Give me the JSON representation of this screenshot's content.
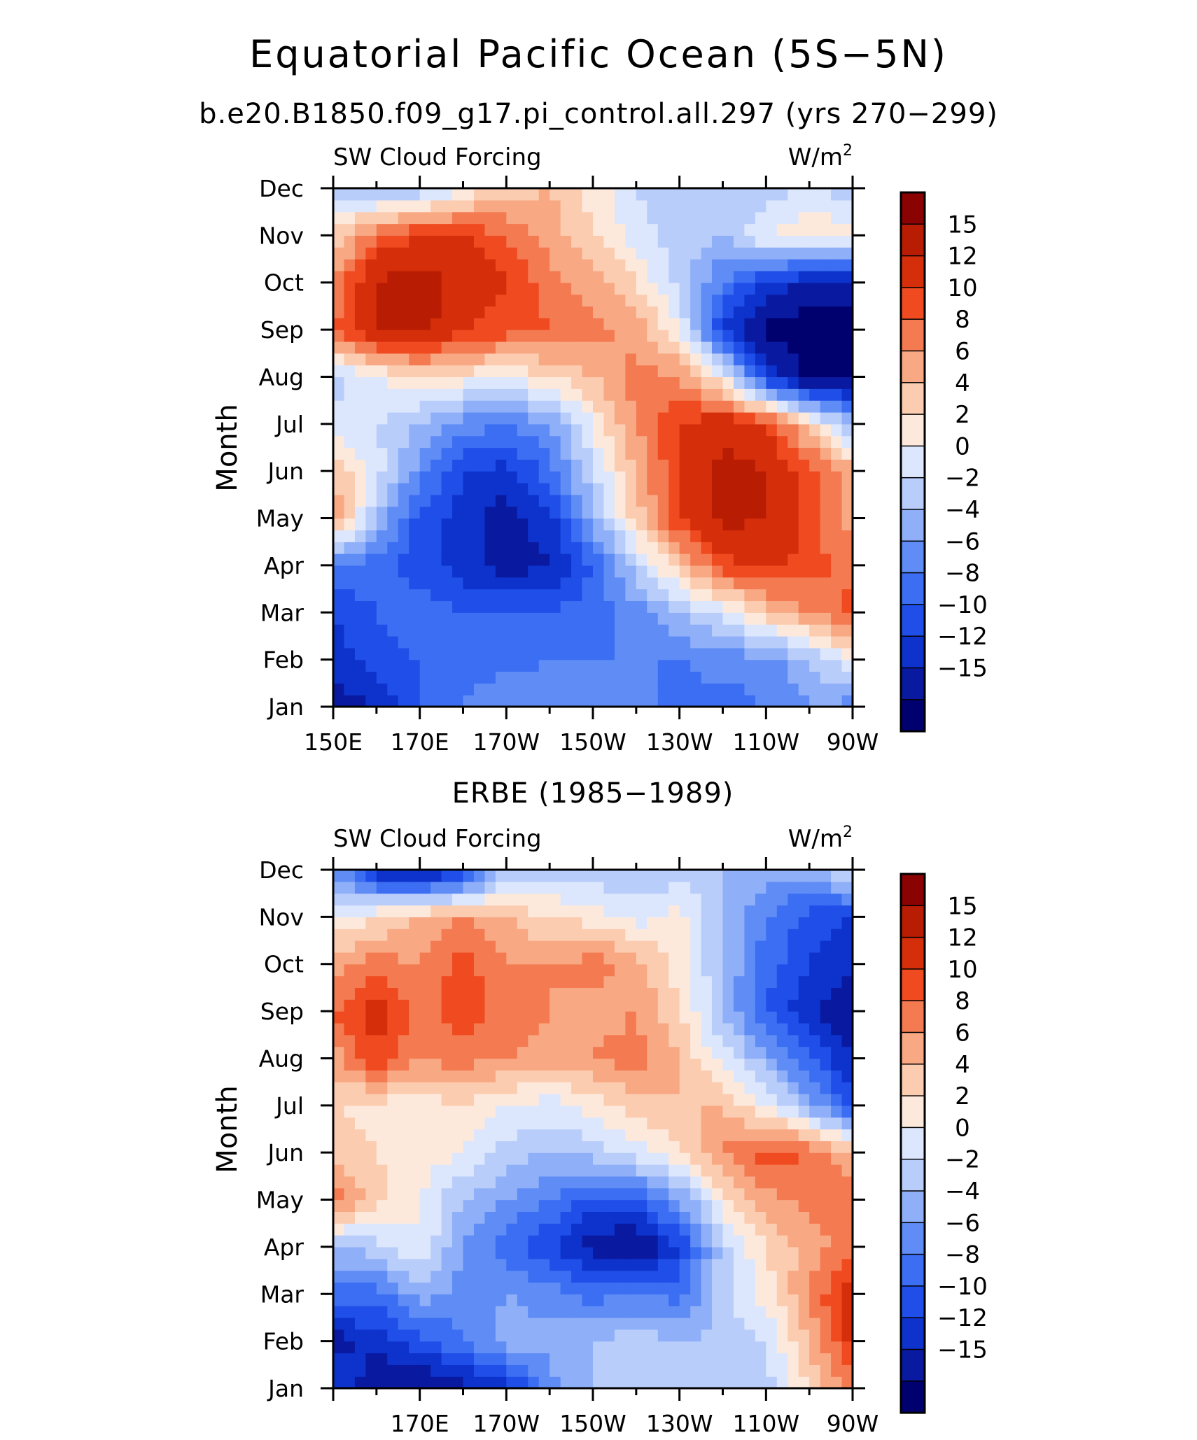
{
  "title": "Equatorial Pacific Ocean (5S−5N)",
  "subtitle": "b.e20.B1850.f09_g17.pi_control.all.297 (yrs 270−299)",
  "panel2_title": "ERBE (1985−1989)",
  "colors": {
    "levels": [
      "#00006f",
      "#0a1aa0",
      "#0d33cc",
      "#1f4fe8",
      "#3b6ef2",
      "#5f8cf5",
      "#8fb0f8",
      "#b9cdfb",
      "#dce7fd",
      "#fde9dc",
      "#fbccb0",
      "#f8a883",
      "#f47a51",
      "#f04a20",
      "#d52e0a",
      "#b81d04",
      "#8a0202"
    ],
    "text": "#000000"
  },
  "colorbar": {
    "labels": [
      "15",
      "12",
      "10",
      "8",
      "6",
      "4",
      "2",
      "0",
      "−2",
      "−4",
      "−6",
      "−8",
      "−10",
      "−12",
      "−15"
    ]
  },
  "chart_data": [
    {
      "type": "heatmap",
      "title": "",
      "variable": "SW Cloud Forcing",
      "units": "W/m²",
      "ylabel": "Month",
      "x_tick_labels": [
        "150E",
        "170E",
        "170W",
        "150W",
        "130W",
        "110W",
        "90W"
      ],
      "y_tick_labels": [
        "Jan",
        "Feb",
        "Mar",
        "Apr",
        "May",
        "Jun",
        "Jul",
        "Aug",
        "Sep",
        "Oct",
        "Nov",
        "Dec"
      ],
      "x": [
        150,
        160,
        170,
        180,
        190,
        200,
        210,
        220,
        230,
        240,
        250,
        260,
        270
      ],
      "y": [
        1,
        2,
        3,
        4,
        5,
        6,
        7,
        8,
        9,
        10,
        11,
        12
      ],
      "xlim": [
        150,
        270
      ],
      "ylim": [
        1,
        12
      ],
      "levels": [
        -15,
        -12,
        -10,
        -8,
        -6,
        -4,
        -2,
        0,
        2,
        4,
        6,
        8,
        10,
        12,
        15
      ],
      "values": [
        [
          -13,
          -12,
          -8,
          -6,
          -4,
          -4,
          -4,
          -5,
          -7,
          -7,
          -6,
          -4,
          -5
        ],
        [
          -11,
          -9,
          -8,
          -7,
          -7,
          -6,
          -6,
          -6,
          -6,
          -5,
          -5,
          -2,
          2
        ],
        [
          -10,
          -8,
          -7,
          -8,
          -8,
          -8,
          -7,
          -5,
          -2,
          1,
          5,
          8,
          11
        ],
        [
          -6,
          -7,
          -9,
          -11,
          -13,
          -12,
          -8,
          -1,
          5,
          11,
          13,
          11,
          9
        ],
        [
          8,
          -2,
          -9,
          -11,
          -13,
          -11,
          -3,
          5,
          12,
          16,
          15,
          11,
          7
        ],
        [
          6,
          1,
          -5,
          -10,
          -11,
          -7,
          0,
          6,
          12,
          16,
          15,
          11,
          7
        ],
        [
          1,
          0,
          -2,
          -5,
          -6,
          -4,
          2,
          8,
          12,
          14,
          12,
          5,
          -3
        ],
        [
          -1,
          2,
          4,
          3,
          2,
          4,
          6,
          9,
          8,
          2,
          -10,
          -16,
          -16
        ],
        [
          10,
          15,
          16,
          12,
          11,
          10,
          9,
          7,
          2,
          -10,
          -16,
          -17,
          -17
        ],
        [
          8,
          15,
          17,
          14,
          12,
          9,
          7,
          4,
          -1,
          -6,
          -10,
          -13,
          -13
        ],
        [
          4,
          10,
          12,
          12,
          10,
          7,
          4,
          1,
          -1,
          -2,
          2,
          4,
          3
        ],
        [
          -1,
          -3,
          -2,
          2,
          5,
          6,
          3,
          0,
          -2,
          -1,
          -1,
          0,
          -1
        ]
      ]
    },
    {
      "type": "heatmap",
      "title": "ERBE (1985−1989)",
      "variable": "SW Cloud Forcing",
      "units": "W/m²",
      "ylabel": "Month",
      "x_tick_labels": [
        "170E",
        "170W",
        "150W",
        "130W",
        "110W",
        "90W"
      ],
      "y_tick_labels": [
        "Jan",
        "Feb",
        "Mar",
        "Apr",
        "May",
        "Jun",
        "Jul",
        "Aug",
        "Sep",
        "Oct",
        "Nov",
        "Dec"
      ],
      "x": [
        150,
        160,
        170,
        180,
        190,
        200,
        210,
        220,
        230,
        240,
        250,
        260,
        270
      ],
      "y": [
        1,
        2,
        3,
        4,
        5,
        6,
        7,
        8,
        9,
        10,
        11,
        12
      ],
      "xlim": [
        150,
        270
      ],
      "ylim": [
        1,
        12
      ],
      "levels": [
        -15,
        -12,
        -10,
        -8,
        -6,
        -4,
        -2,
        0,
        2,
        4,
        6,
        8,
        10,
        12,
        15
      ],
      "values": [
        [
          -9,
          -14,
          -15,
          -13,
          -11,
          -5,
          -2,
          -1,
          -1,
          -2,
          -1,
          4,
          9
        ],
        [
          -13,
          -11,
          -9,
          -6,
          -3,
          -3,
          -2,
          -1,
          -2,
          -1,
          0,
          6,
          13
        ],
        [
          -7,
          -7,
          -3,
          -5,
          -4,
          -5,
          -7,
          -6,
          -7,
          -1,
          3,
          8,
          14
        ],
        [
          -2,
          -1,
          2,
          -4,
          -7,
          -10,
          -13,
          -15,
          -10,
          -1,
          4,
          7,
          9
        ],
        [
          9,
          5,
          2,
          -2,
          -4,
          -6,
          -9,
          -8,
          -4,
          3,
          7,
          9,
          10
        ],
        [
          5,
          4,
          3,
          2,
          -1,
          -2,
          -1,
          1,
          4,
          8,
          11,
          10,
          6
        ],
        [
          4,
          3,
          3,
          4,
          2,
          1,
          3,
          5,
          6,
          6,
          2,
          -3,
          -9
        ],
        [
          7,
          12,
          8,
          9,
          8,
          7,
          8,
          9,
          6,
          1,
          -3,
          -8,
          -12
        ],
        [
          10,
          13,
          9,
          11,
          9,
          8,
          7,
          8,
          4,
          -2,
          -8,
          -12,
          -14
        ],
        [
          7,
          9,
          8,
          11,
          8,
          8,
          9,
          7,
          3,
          -2,
          -7,
          -10,
          -12
        ],
        [
          2,
          4,
          6,
          8,
          6,
          4,
          3,
          1,
          3,
          -2,
          -6,
          -9,
          -10
        ],
        [
          -4,
          -12,
          -14,
          -11,
          -2,
          -1,
          -1,
          -2,
          -1,
          -2,
          -3,
          -3,
          1
        ]
      ]
    }
  ],
  "axis_labels": {
    "variable": "SW Cloud Forcing",
    "units_base": "W/m",
    "units_exp": "2",
    "ylabel": "Month"
  }
}
